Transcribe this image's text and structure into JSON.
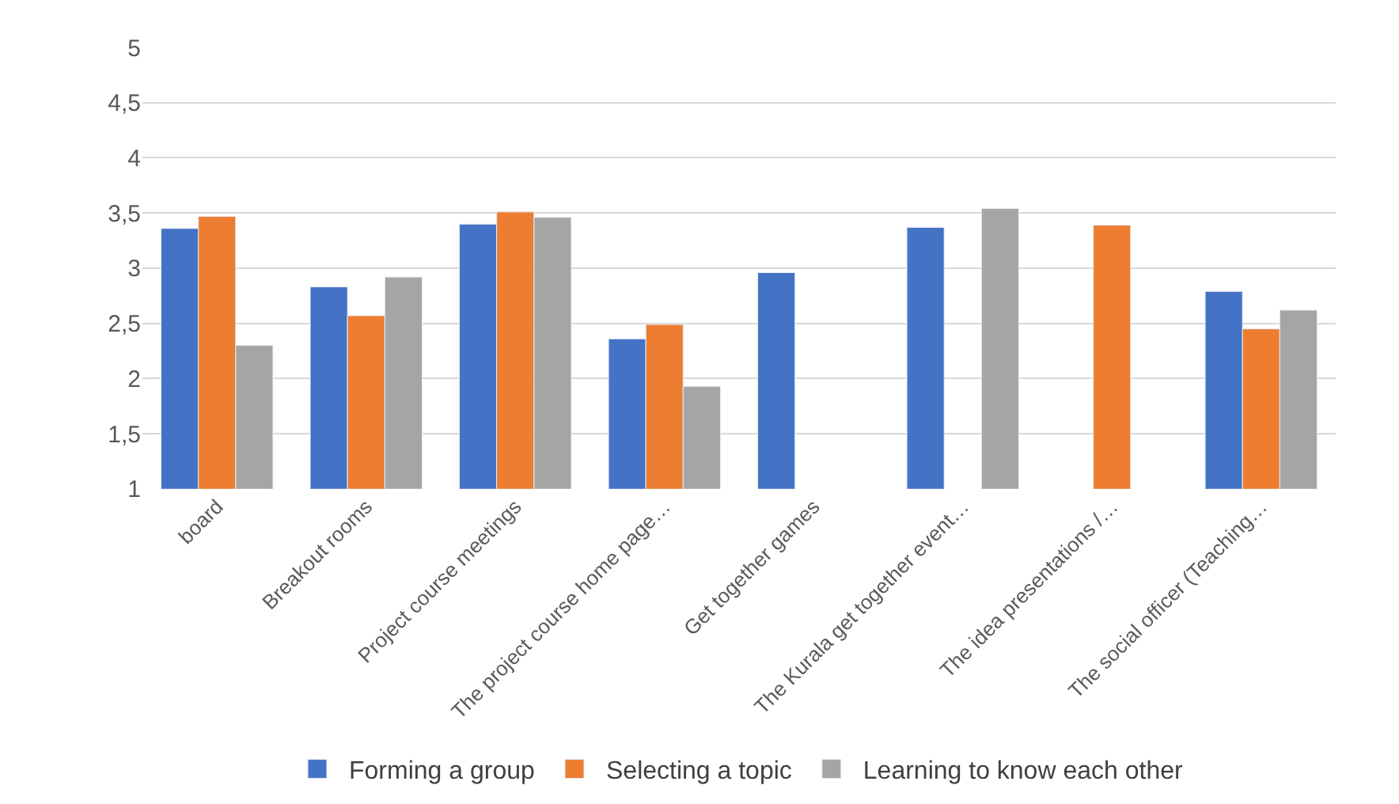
{
  "chart_data": {
    "type": "bar",
    "categories": [
      "board",
      "Breakout rooms",
      "Project course meetings",
      "The project course home page…",
      "Get together games",
      "The Kurala get together event…",
      "The idea presentations /…",
      "The social officer (Teaching…"
    ],
    "series": [
      {
        "name": "Forming a group",
        "color": "#4472c4",
        "values": [
          3.36,
          2.83,
          3.4,
          2.36,
          2.96,
          3.37,
          null,
          2.79
        ]
      },
      {
        "name": "Selecting a topic",
        "color": "#ed7d31",
        "values": [
          3.47,
          2.57,
          3.51,
          2.49,
          null,
          null,
          3.39,
          2.45
        ]
      },
      {
        "name": "Learning to know each other",
        "color": "#a5a5a5",
        "values": [
          2.3,
          2.92,
          3.46,
          1.93,
          null,
          3.54,
          null,
          2.62
        ]
      }
    ],
    "ylim": [
      1,
      5
    ],
    "yticks": [
      1,
      {
        "value": 1.5,
        "label": "1,5"
      },
      2,
      {
        "value": 2.5,
        "label": "2,5"
      },
      3,
      {
        "value": 3.5,
        "label": "3,5"
      },
      4,
      {
        "value": 4.5,
        "label": "4,5"
      },
      5
    ],
    "grid": "y",
    "legend": "bottom"
  }
}
